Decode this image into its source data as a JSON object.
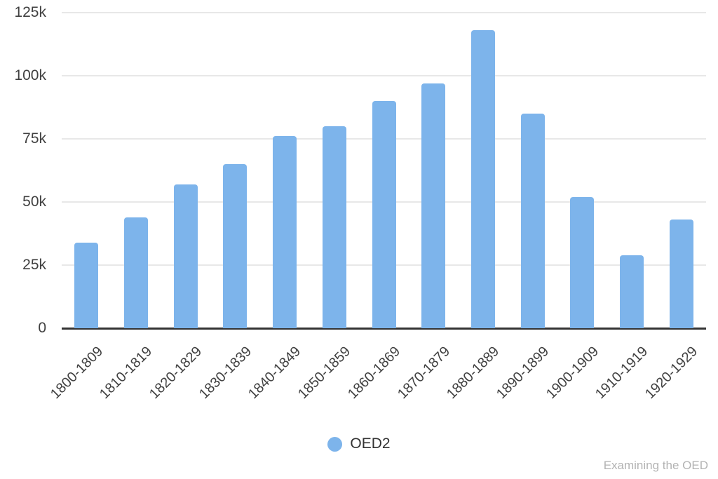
{
  "chart_data": {
    "type": "bar",
    "title": "",
    "xlabel": "",
    "ylabel": "",
    "categories": [
      "1800-1809",
      "1810-1819",
      "1820-1829",
      "1830-1839",
      "1840-1849",
      "1850-1859",
      "1860-1869",
      "1870-1879",
      "1880-1889",
      "1890-1899",
      "1900-1909",
      "1910-1919",
      "1920-1929"
    ],
    "series": [
      {
        "name": "OED2",
        "values": [
          34000,
          44000,
          57000,
          65000,
          76000,
          80000,
          90000,
          97000,
          118000,
          85000,
          52000,
          29000,
          43000
        ]
      }
    ],
    "ylim": [
      0,
      125000
    ],
    "yticks": [
      {
        "value": 0,
        "label": "0"
      },
      {
        "value": 25000,
        "label": "25k"
      },
      {
        "value": 50000,
        "label": "50k"
      },
      {
        "value": 75000,
        "label": "75k"
      },
      {
        "value": 100000,
        "label": "100k"
      },
      {
        "value": 125000,
        "label": "125k"
      }
    ],
    "grid": true,
    "legend_position": "bottom",
    "bar_color": "#7db4eb"
  },
  "legend": {
    "label": "OED2"
  },
  "watermark": "Examining the OED",
  "colors": {
    "bar": "#7db4eb",
    "grid": "#e8e8e8",
    "axis_line": "#333333",
    "tick_label": "#404040",
    "legend_text": "#333333",
    "watermark": "#b3b3b3"
  }
}
